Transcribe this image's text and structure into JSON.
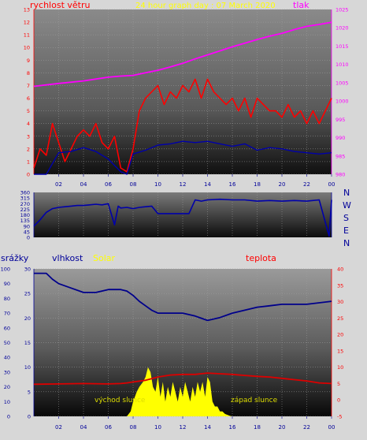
{
  "header": {
    "wind_label": "rychlost větru",
    "title": "24 hour graph day : 07 March 2020",
    "pressure_label": "tlak"
  },
  "direction_letters": [
    "N",
    "W",
    "S",
    "E",
    "N"
  ],
  "labels": {
    "rain": "srážky",
    "humidity": "vlhkost",
    "solar": "Solar",
    "temperature": "teplota",
    "sunrise": "východ slunce",
    "sunset": "západ slunce"
  },
  "colors": {
    "background": "#d7d7d7",
    "wind": "#ff0000",
    "gust_avg": "#0000aa",
    "pressure": "#ff00ff",
    "direction": "#0000aa",
    "humidity": "#00008b",
    "temperature": "#dd0000",
    "solar": "#ffff00",
    "left_axis": "#ff0000",
    "right_axis": "#ff00ff",
    "mid_axis": "#000099"
  },
  "chart_data": [
    {
      "type": "line",
      "title": "24 hour graph day : 07 March 2020",
      "x_ticks": [
        "02",
        "04",
        "06",
        "08",
        "10",
        "12",
        "14",
        "16",
        "18",
        "20",
        "22",
        "00"
      ],
      "x_range_hours": [
        0,
        24
      ],
      "left_axis": {
        "label": "rychlost větru",
        "ylim": [
          0,
          13
        ],
        "ticks": [
          0,
          1,
          2,
          3,
          4,
          5,
          6,
          7,
          8,
          9,
          10,
          11,
          12,
          13
        ]
      },
      "right_axis": {
        "label": "tlak",
        "ylim": [
          980,
          1025
        ],
        "ticks": [
          980,
          985,
          990,
          995,
          1000,
          1005,
          1010,
          1015,
          1020,
          1025
        ]
      },
      "series": [
        {
          "name": "rychlost větru",
          "axis": "left",
          "x": [
            0,
            0.5,
            1,
            1.5,
            2,
            2.5,
            3,
            3.5,
            4,
            4.5,
            5,
            5.5,
            6,
            6.5,
            7,
            7.5,
            8,
            8.5,
            9,
            9.5,
            10,
            10.5,
            11,
            11.5,
            12,
            12.5,
            13,
            13.5,
            14,
            14.5,
            15,
            15.5,
            16,
            16.5,
            17,
            17.5,
            18,
            18.5,
            19,
            19.5,
            20,
            20.5,
            21,
            21.5,
            22,
            22.5,
            23,
            23.5,
            24
          ],
          "values": [
            0.5,
            2,
            1.5,
            4,
            2.5,
            1,
            2,
            3,
            3.5,
            3,
            4,
            2.5,
            2,
            3,
            0.5,
            0.2,
            2,
            5,
            6,
            6.5,
            7,
            5.5,
            6.5,
            6,
            7,
            6.5,
            7.5,
            6,
            7.5,
            6.5,
            6,
            5.5,
            6,
            5,
            6,
            4.5,
            6,
            5.5,
            5,
            5,
            4.5,
            5.5,
            4.5,
            5,
            4,
            5,
            4,
            5,
            6
          ]
        },
        {
          "name": "",
          "axis": "left",
          "x": [
            0,
            1,
            2,
            3,
            4,
            5,
            6,
            7,
            7.5,
            8,
            9,
            10,
            11,
            12,
            13,
            14,
            15,
            16,
            17,
            18,
            19,
            20,
            21,
            22,
            23,
            24
          ],
          "values": [
            0,
            0,
            1.7,
            1.8,
            2.1,
            1.8,
            1.2,
            0.2,
            0,
            1.6,
            1.9,
            2.3,
            2.4,
            2.6,
            2.5,
            2.6,
            2.4,
            2.2,
            2.4,
            1.9,
            2.1,
            2,
            1.8,
            1.7,
            1.6,
            1.7
          ]
        },
        {
          "name": "tlak",
          "axis": "right",
          "x": [
            0,
            2,
            4,
            6,
            7,
            8,
            9,
            10,
            11,
            12,
            13,
            14,
            15,
            16,
            17,
            18,
            19,
            20,
            21,
            22,
            23,
            24
          ],
          "values": [
            1004,
            1004.8,
            1005.5,
            1006.5,
            1006.8,
            1007,
            1007.7,
            1008.4,
            1009.3,
            1010.3,
            1011.5,
            1012.6,
            1013.7,
            1014.8,
            1015.8,
            1016.8,
            1017.7,
            1018.5,
            1019.5,
            1020.4,
            1020.9,
            1021.5
          ]
        }
      ]
    },
    {
      "type": "line",
      "x_range_hours": [
        0,
        24
      ],
      "left_axis": {
        "ylim": [
          0,
          360
        ],
        "ticks": [
          0,
          45,
          90,
          135,
          180,
          225,
          270,
          315,
          360
        ]
      },
      "series": [
        {
          "name": "",
          "x": [
            0,
            0.5,
            1,
            1.5,
            2,
            2.5,
            3,
            3.5,
            4,
            4.5,
            5,
            5.5,
            6,
            6.5,
            6.8,
            7,
            7.5,
            8,
            8.5,
            9,
            9.5,
            10,
            11,
            12,
            12.5,
            13,
            13.5,
            14,
            15,
            16,
            17,
            18,
            19,
            20,
            21,
            22,
            23,
            23.8,
            24
          ],
          "values": [
            90,
            140,
            200,
            230,
            240,
            245,
            250,
            255,
            255,
            260,
            265,
            260,
            270,
            100,
            250,
            235,
            240,
            230,
            240,
            245,
            250,
            190,
            190,
            190,
            190,
            300,
            290,
            300,
            305,
            300,
            300,
            290,
            295,
            290,
            295,
            290,
            300,
            10,
            300
          ]
        }
      ]
    },
    {
      "type": "area",
      "labels": [
        "srážky",
        "vlhkost",
        "Solar",
        "teplota"
      ],
      "x_ticks": [
        "02",
        "04",
        "06",
        "08",
        "10",
        "12",
        "14",
        "16",
        "18",
        "20",
        "22",
        "00"
      ],
      "x_range_hours": [
        0,
        24
      ],
      "rain_axis": {
        "label": "srážky",
        "ylim": [
          0,
          100
        ],
        "ticks": [
          0,
          5,
          10,
          15,
          20,
          25,
          30,
          35,
          40,
          45,
          50,
          55,
          60,
          65,
          70,
          75,
          80,
          85,
          90,
          95,
          100
        ]
      },
      "humidity_axis": {
        "label": "vlhkost",
        "ylim": [
          0,
          30
        ],
        "ticks": [
          0,
          5,
          10,
          15,
          20,
          25,
          30
        ]
      },
      "temperature_axis": {
        "label": "teplota",
        "ylim": [
          -5,
          40
        ],
        "ticks": [
          -5,
          0,
          5,
          10,
          15,
          20,
          25,
          30,
          35,
          40
        ]
      },
      "annotations": [
        "východ slunce",
        "západ slunce"
      ],
      "series": [
        {
          "name": "vlhkost",
          "axis": "rain",
          "x": [
            0,
            0.5,
            1,
            1.5,
            2,
            3,
            4,
            5,
            6,
            7,
            7.5,
            8,
            8.5,
            9,
            9.5,
            10,
            11,
            12,
            13,
            14,
            15,
            16,
            17,
            18,
            19,
            20,
            21,
            22,
            23,
            24
          ],
          "values": [
            97,
            97,
            97,
            93,
            90,
            87,
            84,
            84,
            86,
            86,
            85,
            82,
            78,
            75,
            72,
            70,
            70,
            70,
            68,
            65,
            67,
            70,
            72,
            74,
            75,
            76,
            76,
            76,
            77,
            78
          ]
        },
        {
          "name": "teplota",
          "axis": "temperature",
          "x": [
            0,
            2,
            4,
            6,
            7,
            7.5,
            8,
            9,
            10,
            11,
            12,
            13,
            14,
            15,
            16,
            17,
            18,
            19,
            20,
            21,
            22,
            23,
            24
          ],
          "values": [
            4.8,
            4.9,
            5,
            4.9,
            5,
            5.2,
            5.5,
            6,
            7,
            7.6,
            7.8,
            7.8,
            8.2,
            8,
            7.8,
            7.5,
            7.2,
            7,
            6.6,
            6.2,
            5.8,
            5.2,
            5
          ]
        },
        {
          "name": "Solar",
          "axis": "humidity",
          "x": [
            7.5,
            7.8,
            8,
            8.3,
            8.5,
            8.8,
            9,
            9.2,
            9.4,
            9.6,
            9.8,
            10,
            10.2,
            10.4,
            10.6,
            10.8,
            11,
            11.2,
            11.4,
            11.6,
            11.8,
            12,
            12.2,
            12.4,
            12.6,
            12.8,
            13,
            13.2,
            13.4,
            13.6,
            13.8,
            14,
            14.2,
            14.4,
            14.6,
            14.8,
            15,
            15.2,
            15.4,
            15.6,
            15.8,
            16
          ],
          "values": [
            0,
            1,
            3,
            5,
            6,
            7,
            8,
            10,
            9,
            6,
            5,
            8,
            4,
            7,
            3,
            6,
            4,
            7,
            5,
            3,
            6,
            4,
            7,
            5,
            3,
            6,
            4,
            7,
            5,
            7,
            4,
            8,
            7,
            3,
            2,
            2,
            1,
            1,
            0.5,
            0.3,
            0.1,
            0
          ]
        }
      ]
    }
  ]
}
